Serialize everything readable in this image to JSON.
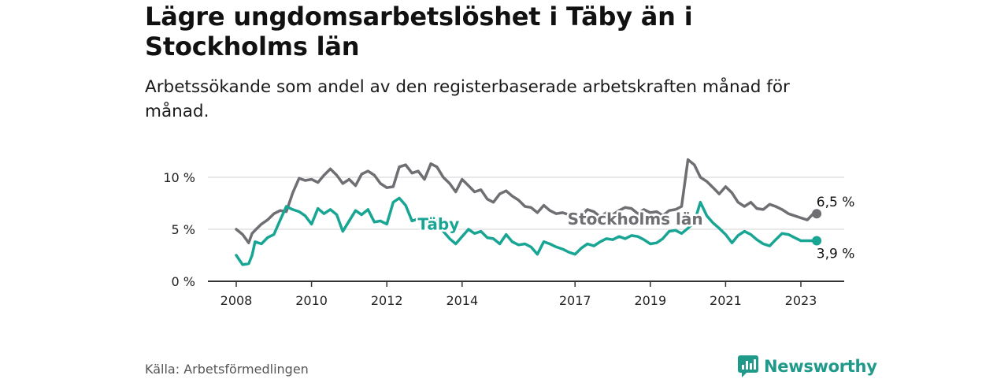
{
  "title": "Lägre ungdomsarbetslöshet i Täby än i Stockholms län",
  "subtitle": "Arbetssökande som andel av den registerbaserade arbetskraften månad för månad.",
  "source": "Källa: Arbetsförmedlingen",
  "brand": "Newsworthy",
  "colors": {
    "stockholm": "#6e6e73",
    "taby": "#18a593",
    "axis": "#333333",
    "grid": "#d9d9d9",
    "brand": "#1f9a8a"
  },
  "chart_data": {
    "type": "line",
    "title": "Lägre ungdomsarbetslöshet i Täby än i Stockholms län",
    "xlabel": "",
    "ylabel": "",
    "x_range": [
      2007.5,
      2024.2
    ],
    "ylim": [
      0,
      12.5
    ],
    "y_ticks": [
      {
        "value": 0,
        "label": "0 %"
      },
      {
        "value": 5,
        "label": "5 %"
      },
      {
        "value": 10,
        "label": "10 %"
      }
    ],
    "x_ticks": [
      {
        "value": 2008,
        "label": "2008"
      },
      {
        "value": 2010,
        "label": "2010"
      },
      {
        "value": 2012,
        "label": "2012"
      },
      {
        "value": 2014,
        "label": "2014"
      },
      {
        "value": 2017,
        "label": "2017"
      },
      {
        "value": 2019,
        "label": "2019"
      },
      {
        "value": 2021,
        "label": "2021"
      },
      {
        "value": 2023,
        "label": "2023"
      }
    ],
    "series": [
      {
        "name": "Stockholms län",
        "color": "#6e6e73",
        "label": "Stockholms län",
        "label_at": {
          "x": 2016.8,
          "y": 6.0
        },
        "end_label": "6,5 %",
        "x": [
          2008.0,
          2008.17,
          2008.33,
          2008.42,
          2008.5,
          2008.67,
          2008.83,
          2009.0,
          2009.17,
          2009.33,
          2009.5,
          2009.67,
          2009.83,
          2010.0,
          2010.17,
          2010.33,
          2010.5,
          2010.67,
          2010.83,
          2011.0,
          2011.17,
          2011.33,
          2011.5,
          2011.67,
          2011.83,
          2012.0,
          2012.17,
          2012.33,
          2012.5,
          2012.67,
          2012.83,
          2013.0,
          2013.17,
          2013.33,
          2013.5,
          2013.67,
          2013.83,
          2014.0,
          2014.17,
          2014.33,
          2014.5,
          2014.67,
          2014.83,
          2015.0,
          2015.17,
          2015.33,
          2015.5,
          2015.67,
          2015.83,
          2016.0,
          2016.17,
          2016.33,
          2016.5,
          2016.67,
          2016.83,
          2017.0,
          2017.17,
          2017.33,
          2017.5,
          2017.67,
          2017.83,
          2018.0,
          2018.17,
          2018.33,
          2018.5,
          2018.67,
          2018.83,
          2019.0,
          2019.17,
          2019.33,
          2019.5,
          2019.67,
          2019.83,
          2020.0,
          2020.17,
          2020.33,
          2020.5,
          2020.67,
          2020.83,
          2021.0,
          2021.17,
          2021.33,
          2021.5,
          2021.67,
          2021.83,
          2022.0,
          2022.17,
          2022.33,
          2022.5,
          2022.67,
          2022.83,
          2023.0,
          2023.17,
          2023.33,
          2023.5
        ],
        "values": [
          5.0,
          4.5,
          3.7,
          4.6,
          4.9,
          5.5,
          5.9,
          6.5,
          6.8,
          6.7,
          8.5,
          9.9,
          9.7,
          9.8,
          9.5,
          10.2,
          10.8,
          10.2,
          9.4,
          9.8,
          9.2,
          10.3,
          10.6,
          10.2,
          9.4,
          9.0,
          9.1,
          11.0,
          11.2,
          10.4,
          10.6,
          9.8,
          11.3,
          11.0,
          10.0,
          9.4,
          8.6,
          9.8,
          9.2,
          8.6,
          8.8,
          7.9,
          7.6,
          8.4,
          8.7,
          8.2,
          7.8,
          7.2,
          7.1,
          6.6,
          7.3,
          6.8,
          6.5,
          6.6,
          6.4,
          6.5,
          6.3,
          6.9,
          6.7,
          6.2,
          6.6,
          6.4,
          6.8,
          7.1,
          7.0,
          6.5,
          6.9,
          6.6,
          6.7,
          6.3,
          6.8,
          6.9,
          7.2,
          11.7,
          11.2,
          10.0,
          9.6,
          9.0,
          8.4,
          9.1,
          8.5,
          7.6,
          7.2,
          7.6,
          7.0,
          6.9,
          7.4,
          7.2,
          6.9,
          6.5,
          6.3,
          6.1,
          5.9,
          6.5,
          6.5
        ],
        "end": {
          "x": 2023.42,
          "y": 6.5
        }
      },
      {
        "name": "Täby",
        "color": "#18a593",
        "label": "Täby",
        "label_at": {
          "x": 2012.82,
          "y": 5.5
        },
        "end_label": "3,9 %",
        "x": [
          2008.0,
          2008.17,
          2008.33,
          2008.42,
          2008.5,
          2008.67,
          2008.83,
          2009.0,
          2009.17,
          2009.33,
          2009.5,
          2009.67,
          2009.83,
          2010.0,
          2010.17,
          2010.33,
          2010.5,
          2010.67,
          2010.83,
          2011.0,
          2011.17,
          2011.33,
          2011.5,
          2011.67,
          2011.83,
          2012.0,
          2012.17,
          2012.33,
          2012.5,
          2012.67,
          2012.83,
          2013.0,
          2013.17,
          2013.33,
          2013.5,
          2013.67,
          2013.83,
          2014.0,
          2014.17,
          2014.33,
          2014.5,
          2014.67,
          2014.83,
          2015.0,
          2015.17,
          2015.33,
          2015.5,
          2015.67,
          2015.83,
          2016.0,
          2016.17,
          2016.33,
          2016.5,
          2016.67,
          2016.83,
          2017.0,
          2017.17,
          2017.33,
          2017.5,
          2017.67,
          2017.83,
          2018.0,
          2018.17,
          2018.33,
          2018.5,
          2018.67,
          2018.83,
          2019.0,
          2019.17,
          2019.33,
          2019.5,
          2019.67,
          2019.83,
          2020.0,
          2020.17,
          2020.33,
          2020.5,
          2020.67,
          2020.83,
          2021.0,
          2021.17,
          2021.33,
          2021.5,
          2021.67,
          2021.83,
          2022.0,
          2022.17,
          2022.33,
          2022.5,
          2022.67,
          2022.83,
          2023.0,
          2023.17,
          2023.33,
          2023.5
        ],
        "values": [
          2.5,
          1.6,
          1.7,
          2.5,
          3.8,
          3.6,
          4.2,
          4.5,
          5.9,
          7.2,
          6.9,
          6.7,
          6.3,
          5.5,
          7.0,
          6.5,
          6.9,
          6.4,
          4.8,
          5.8,
          6.8,
          6.4,
          6.9,
          5.7,
          5.8,
          5.5,
          7.6,
          8.0,
          7.3,
          5.8,
          6.0,
          5.3,
          6.2,
          5.8,
          4.8,
          4.1,
          3.6,
          4.3,
          5.0,
          4.6,
          4.8,
          4.2,
          4.1,
          3.6,
          4.5,
          3.8,
          3.5,
          3.6,
          3.3,
          2.6,
          3.8,
          3.6,
          3.3,
          3.1,
          2.8,
          2.6,
          3.2,
          3.6,
          3.4,
          3.8,
          4.1,
          4.0,
          4.3,
          4.1,
          4.4,
          4.3,
          4.0,
          3.6,
          3.7,
          4.1,
          4.8,
          4.9,
          4.6,
          5.1,
          5.7,
          7.6,
          6.3,
          5.6,
          5.1,
          4.5,
          3.7,
          4.4,
          4.8,
          4.5,
          4.0,
          3.6,
          3.4,
          4.0,
          4.6,
          4.5,
          4.2,
          3.9,
          3.9,
          3.9,
          3.9
        ],
        "end": {
          "x": 2023.42,
          "y": 3.9
        }
      }
    ]
  }
}
